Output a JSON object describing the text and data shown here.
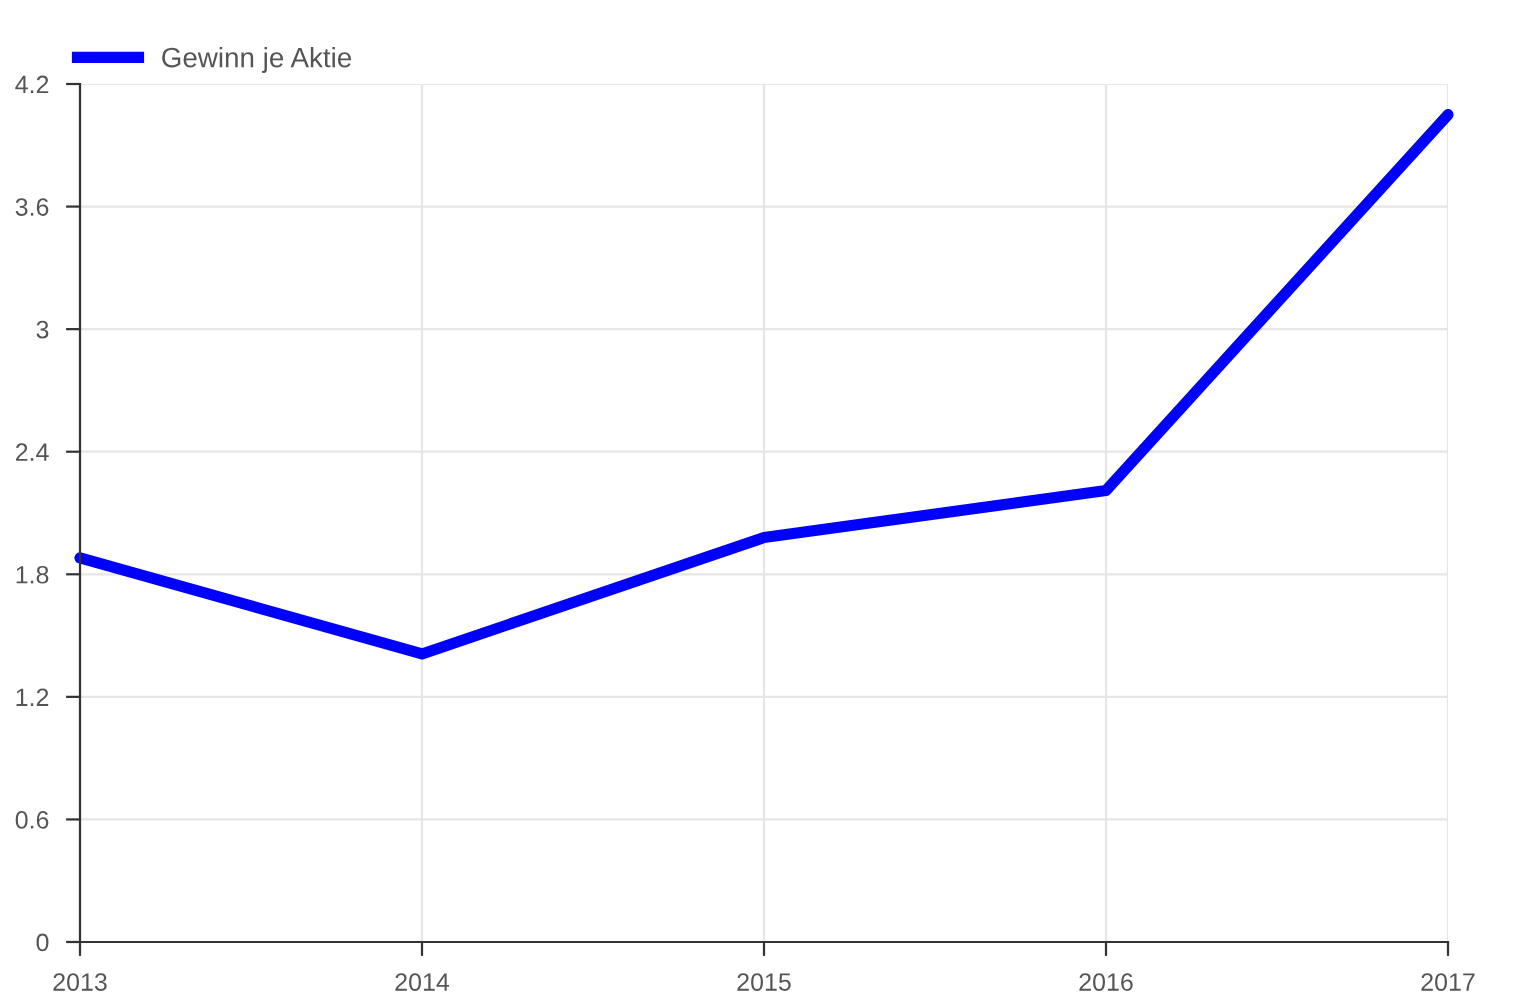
{
  "chart_data": {
    "type": "line",
    "categories": [
      "2013",
      "2014",
      "2015",
      "2016",
      "2017"
    ],
    "series": [
      {
        "name": "Gewinn je Aktie",
        "color": "#0000ff",
        "values": [
          1.88,
          1.41,
          1.98,
          2.21,
          4.05
        ]
      }
    ],
    "ylim": [
      0,
      4.2
    ],
    "yticks": [
      0,
      0.6,
      1.2,
      1.8,
      2.4,
      3,
      3.6,
      4.2
    ],
    "grid": true,
    "legend": "top left",
    "marker": "none",
    "line_style": "solid"
  }
}
